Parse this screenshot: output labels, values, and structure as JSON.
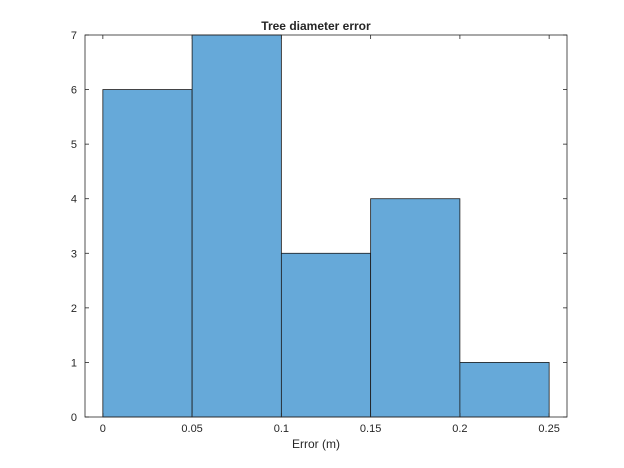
{
  "chart_data": {
    "type": "bar",
    "title": "Tree diameter error",
    "xlabel": "Error (m)",
    "ylabel": "",
    "bin_edges": [
      0,
      0.05,
      0.1,
      0.15,
      0.2,
      0.25
    ],
    "values": [
      6,
      7,
      3,
      4,
      1
    ],
    "xlim": [
      -0.01,
      0.26
    ],
    "ylim": [
      0,
      7
    ],
    "xticks": [
      0,
      0.05,
      0.1,
      0.15,
      0.2,
      0.25
    ],
    "xtick_labels": [
      "0",
      "0.05",
      "0.1",
      "0.15",
      "0.2",
      "0.25"
    ],
    "yticks": [
      0,
      1,
      2,
      3,
      4,
      5,
      6,
      7
    ],
    "ytick_labels": [
      "0",
      "1",
      "2",
      "3",
      "4",
      "5",
      "6",
      "7"
    ],
    "grid": false,
    "bar_color": "#66a9d9",
    "edge_color": "#1a1a1a"
  }
}
